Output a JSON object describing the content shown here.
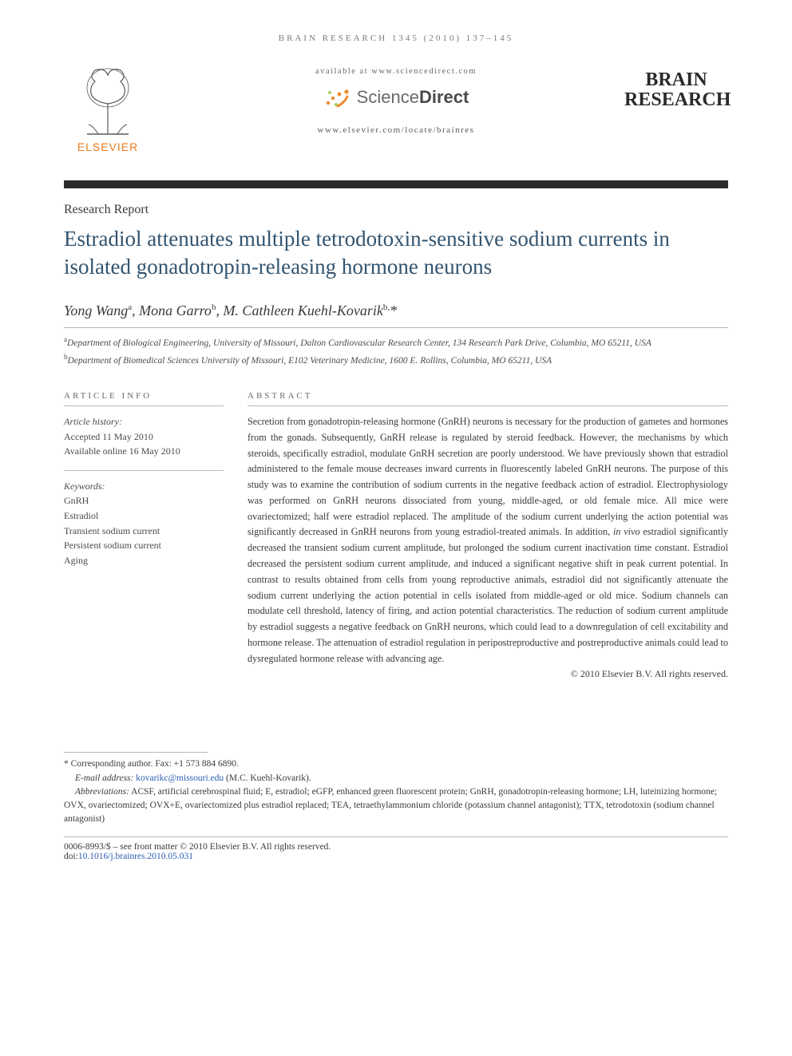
{
  "running_head": "BRAIN RESEARCH 1345 (2010) 137–145",
  "masthead": {
    "elsevier": "ELSEVIER",
    "available_at": "available at www.sciencedirect.com",
    "sd_brand_light": "Science",
    "sd_brand_bold": "Direct",
    "locate": "www.elsevier.com/locate/brainres",
    "journal_line1": "BRAIN",
    "journal_line2": "RESEARCH"
  },
  "section_label": "Research Report",
  "title": "Estradiol attenuates multiple tetrodotoxin-sensitive sodium currents in isolated gonadotropin-releasing hormone neurons",
  "authors_html": "Yong Wang<sup>a</sup>, Mona Garro<sup>b</sup>, M. Cathleen Kuehl-Kovarik<sup>b,</sup>*",
  "affiliations": [
    "<sup>a</sup>Department of Biological Engineering, University of Missouri, Dalton Cardiovascular Research Center, 134 Research Park Drive, Columbia, MO 65211, USA",
    "<sup>b</sup>Department of Biomedical Sciences University of Missouri, E102 Veterinary Medicine, 1600 E. Rollins, Columbia, MO 65211, USA"
  ],
  "article_info": {
    "head": "ARTICLE INFO",
    "history_label": "Article history:",
    "accepted": "Accepted 11 May 2010",
    "online": "Available online 16 May 2010",
    "keywords_label": "Keywords:",
    "keywords": [
      "GnRH",
      "Estradiol",
      "Transient sodium current",
      "Persistent sodium current",
      "Aging"
    ]
  },
  "abstract": {
    "head": "ABSTRACT",
    "body": "Secretion from gonadotropin-releasing hormone (GnRH) neurons is necessary for the production of gametes and hormones from the gonads. Subsequently, GnRH release is regulated by steroid feedback. However, the mechanisms by which steroids, specifically estradiol, modulate GnRH secretion are poorly understood. We have previously shown that estradiol administered to the female mouse decreases inward currents in fluorescently labeled GnRH neurons. The purpose of this study was to examine the contribution of sodium currents in the negative feedback action of estradiol. Electrophysiology was performed on GnRH neurons dissociated from young, middle-aged, or old female mice. All mice were ovariectomized; half were estradiol replaced. The amplitude of the sodium current underlying the action potential was significantly decreased in GnRH neurons from young estradiol-treated animals. In addition, in vivo estradiol significantly decreased the transient sodium current amplitude, but prolonged the sodium current inactivation time constant. Estradiol decreased the persistent sodium current amplitude, and induced a significant negative shift in peak current potential. In contrast to results obtained from cells from young reproductive animals, estradiol did not significantly attenuate the sodium current underlying the action potential in cells isolated from middle-aged or old mice. Sodium channels can modulate cell threshold, latency of firing, and action potential characteristics. The reduction of sodium current amplitude by estradiol suggests a negative feedback on GnRH neurons, which could lead to a downregulation of cell excitability and hormone release. The attenuation of estradiol regulation in peripostreproductive and postreproductive animals could lead to dysregulated hormone release with advancing age.",
    "copyright": "© 2010 Elsevier B.V. All rights reserved."
  },
  "footnotes": {
    "corr_label": "* Corresponding author.",
    "corr_fax": "Fax: +1 573 884 6890.",
    "email_label": "E-mail address:",
    "email": "kovarikc@missouri.edu",
    "email_paren": "(M.C. Kuehl-Kovarik).",
    "abbrev_label": "Abbreviations:",
    "abbrev_body": "ACSF, artificial cerebrospinal fluid; E, estradiol; eGFP, enhanced green fluorescent protein; GnRH, gonadotropin-releasing hormone; LH, luteinizing hormone; OVX, ovariectomized; OVX+E, ovariectomized plus estradiol replaced; TEA, tetraethylammonium chloride (potassium channel antagonist); TTX, tetrodotoxin (sodium channel antagonist)"
  },
  "footer": {
    "front_matter": "0006-8993/$ – see front matter © 2010 Elsevier B.V. All rights reserved.",
    "doi_prefix": "doi:",
    "doi": "10.1016/j.brainres.2010.05.031"
  },
  "colors": {
    "title": "#33546f",
    "elsevier_orange": "#e87b1c",
    "sd_orange": "#ef8b2c",
    "sd_green": "#8bc34a",
    "rule_dark": "#2b2b2b",
    "link": "#2a5db0"
  }
}
